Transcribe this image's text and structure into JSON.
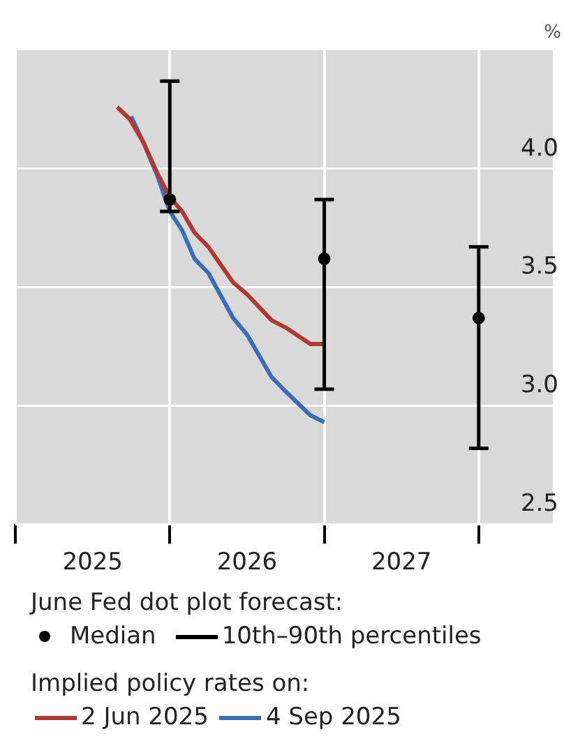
{
  "chart_data": {
    "type": "line",
    "ylabel": "%",
    "x": [
      2025.66,
      2025.74,
      2025.83,
      2025.92,
      2026.0,
      2026.08,
      2026.16,
      2026.25,
      2026.41,
      2026.5,
      2026.66,
      2026.75,
      2026.91,
      2027.0
    ],
    "series": [
      {
        "name": "Median",
        "type": "scatter",
        "marker": "circle",
        "color": "#000000",
        "x": [
          2026,
          2027,
          2028
        ],
        "values": [
          3.87,
          3.62,
          3.37
        ],
        "errors": [
          [
            3.82,
            4.37
          ],
          [
            3.07,
            3.87
          ],
          [
            2.82,
            3.67
          ]
        ]
      },
      {
        "name": "2 Jun 2025",
        "marker": "none",
        "color": "#b03a32",
        "values": [
          4.26,
          4.21,
          4.11,
          3.98,
          3.88,
          3.82,
          3.73,
          3.67,
          3.52,
          3.47,
          3.36,
          3.33,
          3.26,
          3.26
        ]
      },
      {
        "name": "4 Sep 2025",
        "marker": "none",
        "color": "#3a6fb5",
        "x": [
          2025.75,
          2025.83,
          2025.92,
          2026.0,
          2026.08,
          2026.16,
          2026.25,
          2026.41,
          2026.5,
          2026.66,
          2026.75,
          2026.91,
          2027.0
        ],
        "values": [
          4.22,
          4.11,
          3.97,
          3.82,
          3.74,
          3.62,
          3.56,
          3.37,
          3.3,
          3.12,
          3.06,
          2.96,
          2.93
        ]
      }
    ],
    "xlim": [
      2025,
      2028.48
    ],
    "xticks": [
      {
        "value": 2025,
        "label": null
      },
      {
        "value": 2025.5,
        "label": "2025"
      },
      {
        "value": 2026,
        "label": null
      },
      {
        "value": 2026.5,
        "label": "2026"
      },
      {
        "value": 2027,
        "label": null
      },
      {
        "value": 2027.5,
        "label": "2027"
      },
      {
        "value": 2028,
        "label": null
      }
    ],
    "ylim": [
      2.5,
      4.5
    ],
    "yticks": [
      2.5,
      {
        "value": 3,
        "label": "3.0"
      },
      3.5,
      {
        "value": 4,
        "label": "4.0"
      }
    ],
    "grid": true,
    "legend": "bottom",
    "line_style": "solid",
    "annotations": [
      "June Fed dot plot forecast:",
      "10th–90th percentiles",
      "Implied policy rates on:"
    ]
  }
}
